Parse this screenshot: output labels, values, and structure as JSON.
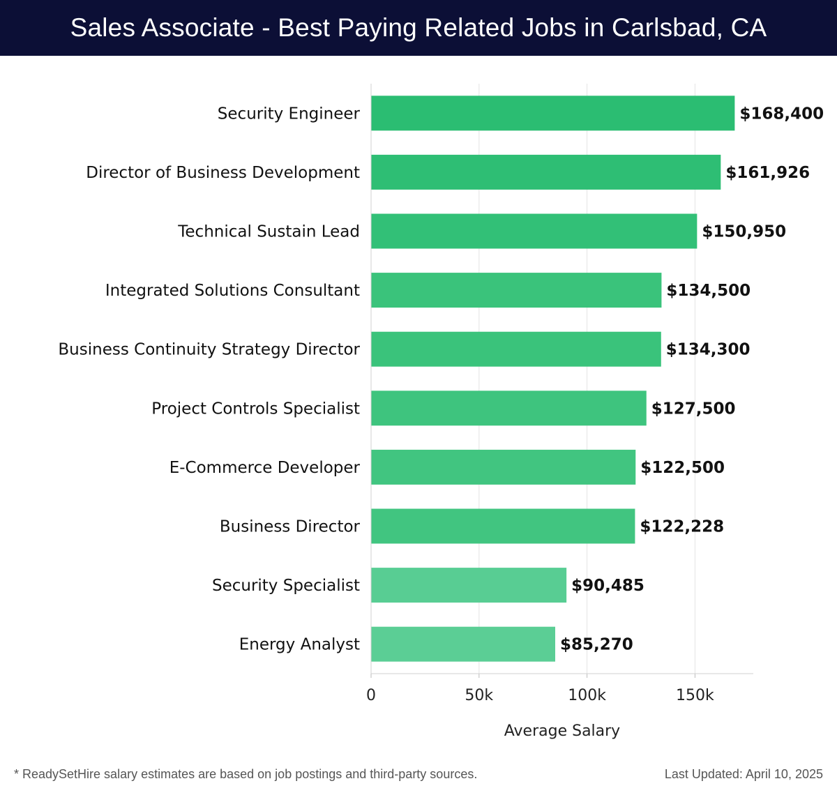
{
  "header": {
    "title": "Sales Associate - Best Paying Related Jobs in Carlsbad, CA"
  },
  "chart_data": {
    "type": "bar",
    "orientation": "horizontal",
    "categories": [
      "Security Engineer",
      "Director of Business Development",
      "Technical Sustain Lead",
      "Integrated Solutions Consultant",
      "Business Continuity Strategy Director",
      "Project Controls Specialist",
      "E-Commerce Developer",
      "Business Director",
      "Security Specialist",
      "Energy Analyst"
    ],
    "values": [
      168400,
      161926,
      150950,
      134500,
      134300,
      127500,
      122500,
      122228,
      90485,
      85270
    ],
    "value_labels": [
      "$168,400",
      "$161,926",
      "$150,950",
      "$134,500",
      "$134,300",
      "$127,500",
      "$122,500",
      "$122,228",
      "$90,485",
      "$85,270"
    ],
    "bar_colors": [
      "#2bbd72",
      "#2ebe74",
      "#32c077",
      "#3ac37b",
      "#3ac37b",
      "#3ec47e",
      "#41c580",
      "#41c580",
      "#58cd93",
      "#5bce95"
    ],
    "xlabel": "Average Salary",
    "ylabel": "",
    "xlim": [
      0,
      177000
    ],
    "x_ticks": [
      0,
      50000,
      100000,
      150000
    ],
    "x_tick_labels": [
      "0",
      "50k",
      "100k",
      "150k"
    ],
    "grid": true
  },
  "footer": {
    "note": "* ReadySetHire salary estimates are based on job postings and third-party sources.",
    "updated": "Last Updated: April 10, 2025"
  }
}
